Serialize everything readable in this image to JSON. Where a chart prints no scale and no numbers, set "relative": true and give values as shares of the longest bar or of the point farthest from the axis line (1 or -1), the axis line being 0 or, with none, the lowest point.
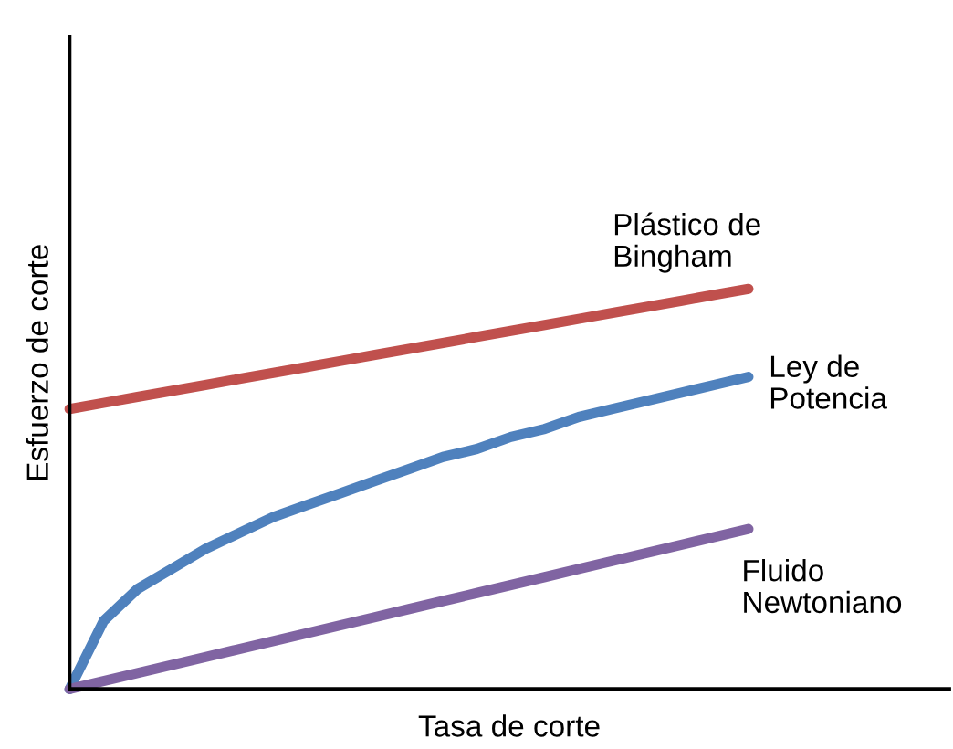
{
  "chart_data": {
    "type": "line",
    "relative": true,
    "xlabel": "Tasa de corte",
    "ylabel": "Esfuerzo de corte",
    "categories": [
      null,
      null,
      null,
      null,
      null,
      null,
      null,
      null,
      null,
      null,
      null,
      null,
      null,
      null,
      null,
      null,
      null,
      null,
      null,
      null,
      null
    ],
    "legend": false,
    "marker": "none",
    "line_style": "solid",
    "series": [
      {
        "name": "Plástico de\nBingham",
        "color": "#c0504d",
        "values": [
          0.7,
          0.715,
          0.73,
          0.745,
          0.76,
          0.775,
          0.79,
          0.805,
          0.82,
          0.835,
          0.85,
          0.865,
          0.88,
          0.895,
          0.91,
          0.925,
          0.94,
          0.955,
          0.97,
          0.985,
          1.0
        ]
      },
      {
        "name": "Ley de\nPotencia",
        "color": "#4f81bd",
        "values": [
          0,
          0.17,
          0.25,
          0.3,
          0.35,
          0.39,
          0.43,
          0.46,
          0.49,
          0.52,
          0.55,
          0.58,
          0.6,
          0.63,
          0.65,
          0.68,
          0.7,
          0.72,
          0.74,
          0.76,
          0.78
        ]
      },
      {
        "name": "Fluido\nNewtoniano",
        "color": "#8064a2",
        "values": [
          0,
          0.02,
          0.04,
          0.06,
          0.08,
          0.1,
          0.12,
          0.14,
          0.16,
          0.18,
          0.2,
          0.22,
          0.24,
          0.26,
          0.28,
          0.3,
          0.32,
          0.34,
          0.36,
          0.38,
          0.4
        ]
      }
    ]
  }
}
